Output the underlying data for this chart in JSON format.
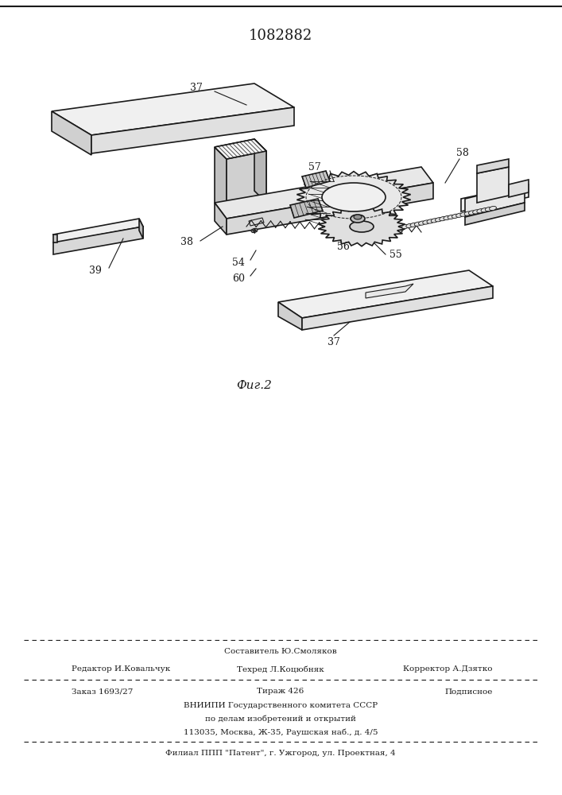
{
  "patent_number": "1082882",
  "fig_label": "Фиг.2",
  "bg_color": "#ffffff",
  "draw_color": "#1a1a1a",
  "footer": {
    "line0_center": "Составитель Ю.Смоляков",
    "line1_left": "Редактор И.Ковальчук",
    "line1_center": "Техред Л.Коцюбняк",
    "line1_right": "Корректор А.Дзятко",
    "line2_left": "Заказ 1693/27",
    "line2_center": "Тираж 426",
    "line2_right": "Подписное",
    "line3": "ВНИИПИ Государственного комитета СССР",
    "line4": "по делам изобретений и открытий",
    "line5": "113035, Москва, Ж-35, Раушская наб., д. 4/5",
    "line6": "Филиал ППП \"Патент\", г. Ужгород, ул. Проектная, 4"
  }
}
